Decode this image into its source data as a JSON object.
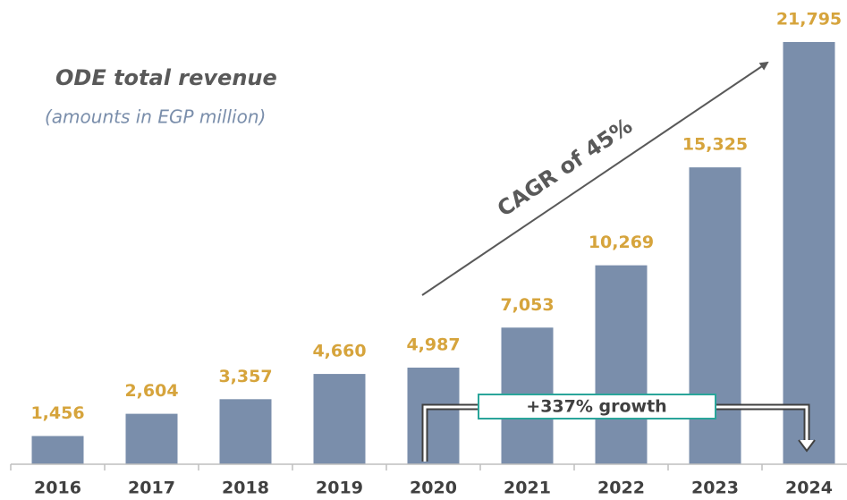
{
  "chart_data": {
    "type": "bar",
    "title": "ODE total revenue",
    "subtitle": "(amounts in EGP million)",
    "categories": [
      "2016",
      "2017",
      "2018",
      "2019",
      "2020",
      "2021",
      "2022",
      "2023",
      "2024"
    ],
    "values": [
      1456,
      2604,
      3357,
      4660,
      4987,
      7053,
      10269,
      15325,
      21795
    ],
    "value_labels": [
      "1,456",
      "2,604",
      "3,357",
      "4,660",
      "4,987",
      "7,053",
      "10,269",
      "15,325",
      "21,795"
    ],
    "color": "#7a8eab",
    "label_color": "#d6a43c",
    "annotations": [
      "CAGR of 45%",
      "+337% growth"
    ]
  }
}
